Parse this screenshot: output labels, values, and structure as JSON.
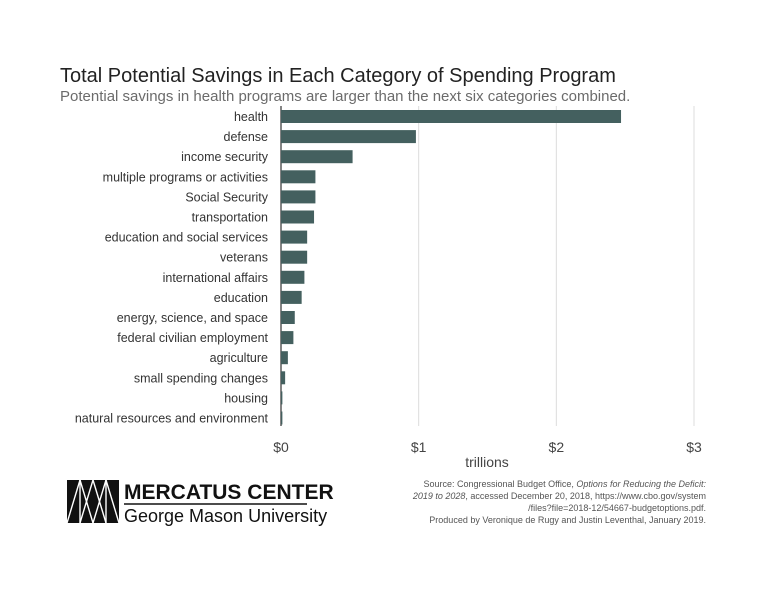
{
  "chart_data": {
    "type": "bar",
    "orientation": "horizontal",
    "title": "Total Potential Savings in Each Category of Spending Program",
    "subtitle": "Potential savings in health programs are larger than the next six categories combined.",
    "categories": [
      "health",
      "defense",
      "income security",
      "multiple programs or activities",
      "Social Security",
      "transportation",
      "education and social services",
      "veterans",
      "international affairs",
      "education",
      "energy, science, and space",
      "federal civilian employment",
      "agriculture",
      "small spending changes",
      "housing",
      "natural resources and environment"
    ],
    "values": [
      2.47,
      0.98,
      0.52,
      0.25,
      0.25,
      0.24,
      0.19,
      0.19,
      0.17,
      0.15,
      0.1,
      0.09,
      0.05,
      0.03,
      0.01,
      0.01
    ],
    "xlabel": "trillions",
    "ylabel": "",
    "xlim": [
      0,
      3
    ],
    "xticks": [
      0,
      1,
      2,
      3
    ],
    "xtick_labels": [
      "$0",
      "$1",
      "$2",
      "$3"
    ],
    "grid": "vertical",
    "bar_color": "#44605f"
  },
  "source": {
    "line1_prefix": "Source: Congressional Budget Office, ",
    "line1_italic": "Options for Reducing the Deficit:",
    "line2_italic": "2019 to 2028",
    "line2_rest": ", accessed December 20, 2018, https://www.cbo.gov/system",
    "line3": "/files?file=2018-12/54667-budgetoptions.pdf.",
    "line4": "Produced by Veronique de Rugy and Justin Leventhal, January 2019."
  },
  "logo": {
    "name": "MERCATUS CENTER",
    "university": "George Mason University"
  }
}
